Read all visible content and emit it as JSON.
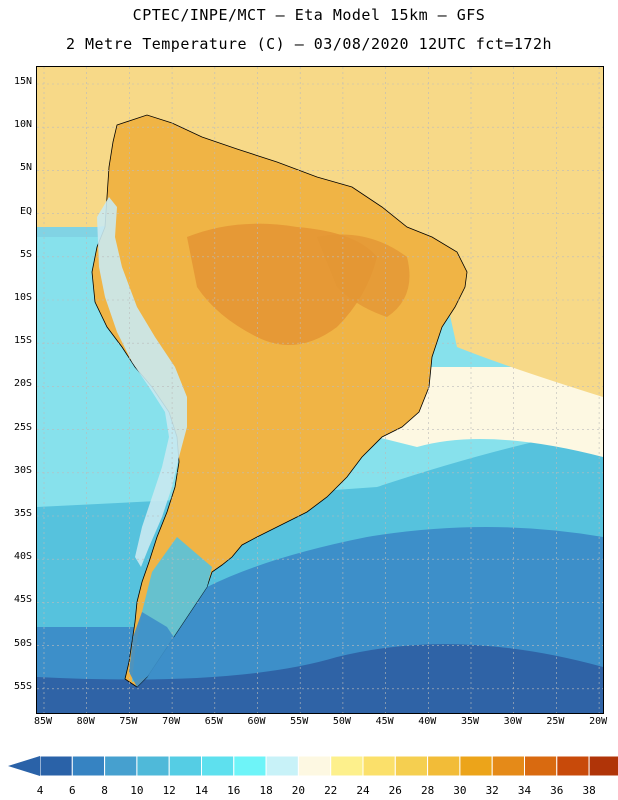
{
  "title_line1": "CPTEC/INPE/MCT –  Eta Model 15km – GFS",
  "title_line2": "2 Metre Temperature (C) – 03/08/2020 12UTC fct=172h",
  "lat_labels": [
    "15N",
    "10N",
    "5N",
    "EQ",
    "5S",
    "10S",
    "15S",
    "20S",
    "25S",
    "30S",
    "35S",
    "40S",
    "45S",
    "50S",
    "55S"
  ],
  "lon_labels": [
    "85W",
    "80W",
    "75W",
    "70W",
    "65W",
    "60W",
    "55W",
    "50W",
    "45W",
    "40W",
    "35W",
    "30W",
    "25W",
    "20W"
  ],
  "colorbar": {
    "values": [
      "4",
      "6",
      "8",
      "10",
      "12",
      "14",
      "16",
      "18",
      "20",
      "22",
      "24",
      "26",
      "28",
      "30",
      "32",
      "34",
      "36",
      "38"
    ],
    "colors": [
      "#2a62a8",
      "#3683c2",
      "#46a0cf",
      "#4fb9d9",
      "#55cde4",
      "#5ee0ee",
      "#6ef4f8",
      "#c8f2f8",
      "#fdf8e2",
      "#fdf08c",
      "#fbe06a",
      "#f5cf50",
      "#f2bc38",
      "#eca41a",
      "#e58a18",
      "#d96a10",
      "#c84a0a",
      "#b03408"
    ]
  },
  "map": {
    "ocean_cold": "#2f63a6",
    "ocean_cool": "#3d8fc9",
    "ocean_mid": "#56c2dd",
    "ocean_warm": "#8fe6ef",
    "tropical_sea": "#f7d988",
    "land_warm": "#f0b445",
    "land_hot": "#e49634",
    "andes": "#c9e9f1"
  }
}
